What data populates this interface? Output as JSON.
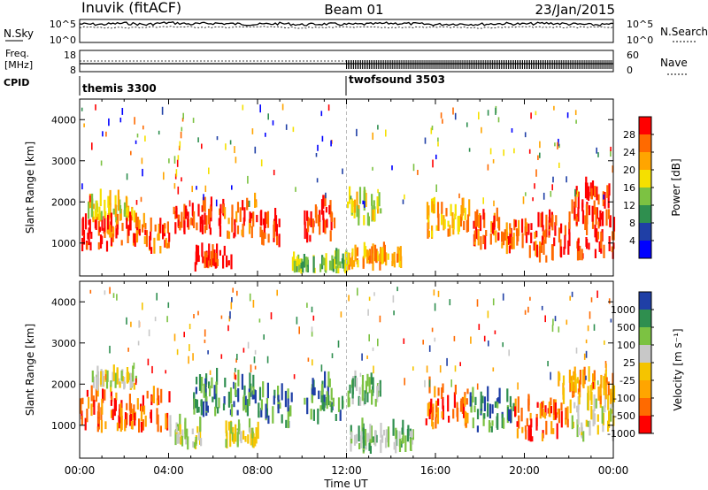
{
  "header": {
    "station": "Inuvik (fitACF)",
    "beam": "Beam 01",
    "date": "23/Jan/2015"
  },
  "chart_data": [
    {
      "type": "line",
      "panel": "noise",
      "left_label": "N.Sky",
      "right_label": "N.Search",
      "left_ticks": [
        "10^5",
        "10^0"
      ],
      "right_ticks": [
        "10^5",
        "10^0"
      ],
      "series": [
        {
          "name": "N.Sky",
          "x": [
            0,
            1,
            2,
            3,
            4,
            5,
            6,
            7,
            8,
            9,
            10,
            11,
            12,
            13,
            14,
            15,
            16,
            17,
            18,
            19,
            20,
            21,
            22,
            23,
            24
          ],
          "values": [
            20000,
            15000,
            30000,
            12000,
            40000,
            18000,
            30000,
            20000,
            15000,
            25000,
            12000,
            20000,
            15000,
            18000,
            30000,
            22000,
            14000,
            20000,
            16000,
            25000,
            18000,
            30000,
            20000,
            12000,
            15000
          ]
        },
        {
          "name": "N.Search",
          "x": [
            0,
            2,
            4,
            6,
            8,
            10,
            12,
            14,
            16,
            18,
            20,
            22,
            24
          ],
          "values": [
            3000,
            2000,
            4000,
            2500,
            3500,
            2000,
            3000,
            2500,
            3000,
            2000,
            3500,
            2500,
            3000
          ]
        }
      ]
    },
    {
      "type": "line",
      "panel": "frequency",
      "left_label": "Freq.",
      "left_unit": "[MHz]",
      "right_label": "Nave",
      "left_ticks": [
        "18",
        "8"
      ],
      "right_ticks": [
        "60",
        "0"
      ],
      "series": [
        {
          "name": "Freq.",
          "x": [
            0,
            12,
            24
          ],
          "values": [
            11.5,
            11.5,
            11.5
          ]
        },
        {
          "name": "Nave",
          "x": [
            0,
            12,
            24
          ],
          "values": [
            30,
            30,
            30
          ]
        }
      ]
    },
    {
      "type": "table",
      "panel": "cpid",
      "label": "CPID",
      "segments": [
        {
          "name": "themis 3300",
          "start": 0,
          "end": 12
        },
        {
          "name": "twofsound 3503",
          "start": 12,
          "end": 24
        }
      ]
    },
    {
      "type": "heatmap",
      "panel": "power",
      "ylabel": "Slant Range [km]",
      "xlabel": "Time UT",
      "x_ticks": [
        "00:00",
        "04:00",
        "08:00",
        "12:00",
        "16:00",
        "20:00",
        "00:00"
      ],
      "xlim": [
        0,
        24
      ],
      "ylim": [
        200,
        4500
      ],
      "y_ticks": [
        1000,
        2000,
        3000,
        4000
      ],
      "colorbar": {
        "label": "Power [dB]",
        "ticks": [
          "28",
          "24",
          "20",
          "16",
          "12",
          "8",
          "4"
        ],
        "colors": [
          "#0000ff",
          "#1f3fa6",
          "#2f8f4f",
          "#7cc242",
          "#f5e000",
          "#ffa500",
          "#ff6a00",
          "#ff0000"
        ]
      },
      "blobs": [
        {
          "t0": 0.0,
          "t1": 1.2,
          "r0": 700,
          "r1": 1500,
          "level": 7
        },
        {
          "t0": 0.3,
          "t1": 2.5,
          "r0": 1500,
          "r1": 1900,
          "level": 4
        },
        {
          "t0": 1.2,
          "t1": 3.0,
          "r0": 900,
          "r1": 1400,
          "level": 6
        },
        {
          "t0": 3.0,
          "t1": 4.0,
          "r0": 700,
          "r1": 1400,
          "level": 6
        },
        {
          "t0": 4.2,
          "t1": 6.0,
          "r0": 1200,
          "r1": 1800,
          "level": 7
        },
        {
          "t0": 5.0,
          "t1": 6.8,
          "r0": 300,
          "r1": 700,
          "level": 7
        },
        {
          "t0": 6.2,
          "t1": 8.0,
          "r0": 1100,
          "r1": 1900,
          "level": 6
        },
        {
          "t0": 8.0,
          "t1": 9.0,
          "r0": 900,
          "r1": 1500,
          "level": 7
        },
        {
          "t0": 10.0,
          "t1": 11.5,
          "r0": 1000,
          "r1": 1900,
          "level": 7
        },
        {
          "t0": 9.5,
          "t1": 12.0,
          "r0": 250,
          "r1": 500,
          "level": 3
        },
        {
          "t0": 12.0,
          "t1": 13.5,
          "r0": 1400,
          "r1": 2000,
          "level": 4
        },
        {
          "t0": 12.0,
          "t1": 14.5,
          "r0": 300,
          "r1": 700,
          "level": 5
        },
        {
          "t0": 15.5,
          "t1": 17.5,
          "r0": 1100,
          "r1": 1800,
          "level": 5
        },
        {
          "t0": 17.5,
          "t1": 19.0,
          "r0": 800,
          "r1": 1600,
          "level": 6
        },
        {
          "t0": 19.0,
          "t1": 21.0,
          "r0": 600,
          "r1": 1400,
          "level": 6
        },
        {
          "t0": 20.5,
          "t1": 24.0,
          "r0": 500,
          "r1": 1600,
          "level": 7
        },
        {
          "t0": 22.0,
          "t1": 23.8,
          "r0": 1400,
          "r1": 2200,
          "level": 7
        }
      ]
    },
    {
      "type": "heatmap",
      "panel": "velocity",
      "ylabel": "Slant Range [km]",
      "xlabel": "Time UT",
      "x_ticks": [
        "00:00",
        "04:00",
        "08:00",
        "12:00",
        "16:00",
        "20:00",
        "00:00"
      ],
      "xlim": [
        0,
        24
      ],
      "ylim": [
        200,
        4500
      ],
      "y_ticks": [
        1000,
        2000,
        3000,
        4000
      ],
      "colorbar": {
        "label": "Velocity [m s⁻¹]",
        "ticks": [
          "1000",
          "500",
          "100",
          "25",
          "-25",
          "-100",
          "-500",
          "-1000"
        ],
        "colors": [
          "#ff0000",
          "#ff6a00",
          "#ffa500",
          "#f5c400",
          "#c8c8c8",
          "#7cc242",
          "#2f8f4f",
          "#1f3fa6"
        ]
      },
      "blobs": [
        {
          "t0": 0.0,
          "t1": 4.0,
          "r0": 800,
          "r1": 1700,
          "level": 1
        },
        {
          "t0": 0.5,
          "t1": 2.5,
          "r0": 1800,
          "r1": 2100,
          "level": 4
        },
        {
          "t0": 4.0,
          "t1": 5.5,
          "r0": 400,
          "r1": 900,
          "level": 4
        },
        {
          "t0": 5.0,
          "t1": 8.0,
          "r0": 1200,
          "r1": 2000,
          "level": 6
        },
        {
          "t0": 8.0,
          "t1": 9.5,
          "r0": 900,
          "r1": 1700,
          "level": 6
        },
        {
          "t0": 6.5,
          "t1": 8.0,
          "r0": 400,
          "r1": 900,
          "level": 4
        },
        {
          "t0": 10.0,
          "t1": 11.8,
          "r0": 1000,
          "r1": 2000,
          "level": 6
        },
        {
          "t0": 12.0,
          "t1": 13.5,
          "r0": 1400,
          "r1": 2000,
          "level": 5
        },
        {
          "t0": 12.0,
          "t1": 15.0,
          "r0": 300,
          "r1": 800,
          "level": 5
        },
        {
          "t0": 15.5,
          "t1": 17.5,
          "r0": 900,
          "r1": 1800,
          "level": 1
        },
        {
          "t0": 17.5,
          "t1": 19.5,
          "r0": 800,
          "r1": 1600,
          "level": 6
        },
        {
          "t0": 19.5,
          "t1": 22.0,
          "r0": 600,
          "r1": 1500,
          "level": 1
        },
        {
          "t0": 22.0,
          "t1": 24.0,
          "r0": 600,
          "r1": 1500,
          "level": 4
        },
        {
          "t0": 21.5,
          "t1": 24.0,
          "r0": 1500,
          "r1": 2100,
          "level": 2
        }
      ]
    }
  ]
}
